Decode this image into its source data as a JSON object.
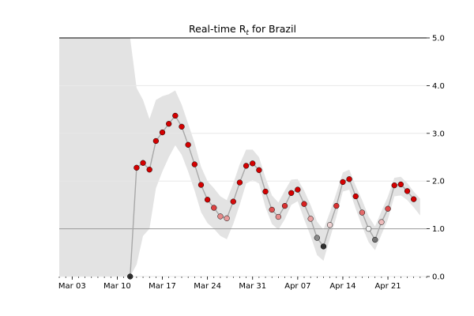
{
  "chart_data": {
    "type": "line",
    "title_prefix": "Real-time R",
    "title_sub": "t",
    "title_suffix": " for Brazil",
    "xlabel": "",
    "ylabel": "",
    "ylim": [
      0,
      5
    ],
    "xlim": [
      "2020-03-01",
      "2020-04-27"
    ],
    "x_ticks": [
      "Mar 03",
      "Mar 10",
      "Mar 17",
      "Mar 24",
      "Mar 31",
      "Apr 07",
      "Apr 14",
      "Apr 21"
    ],
    "x_tick_dates": [
      "2020-03-03",
      "2020-03-10",
      "2020-03-17",
      "2020-03-24",
      "2020-03-31",
      "2020-04-07",
      "2020-04-14",
      "2020-04-21"
    ],
    "y_ticks": [
      "0.0",
      "1.0",
      "2.0",
      "3.0",
      "4.0",
      "5.0"
    ],
    "y_tick_values": [
      0,
      1,
      2,
      3,
      4,
      5
    ],
    "reference_line": 1.0,
    "grid": "horizontal",
    "colors": {
      "band": "#e3e3e3",
      "line": "#a8a8a8",
      "high": "#d40000",
      "low": "#303030",
      "neutral": "#f4f4f4",
      "reference": "#9a9a9a",
      "grid": "#e8e8e8"
    },
    "series": [
      {
        "x": [
          "2020-03-12",
          "2020-03-13",
          "2020-03-14",
          "2020-03-15",
          "2020-03-16",
          "2020-03-17",
          "2020-03-18",
          "2020-03-19",
          "2020-03-20",
          "2020-03-21",
          "2020-03-22",
          "2020-03-23",
          "2020-03-24",
          "2020-03-25",
          "2020-03-26",
          "2020-03-27",
          "2020-03-28",
          "2020-03-29",
          "2020-03-30",
          "2020-03-31",
          "2020-04-01",
          "2020-04-02",
          "2020-04-03",
          "2020-04-04",
          "2020-04-05",
          "2020-04-06",
          "2020-04-07",
          "2020-04-08",
          "2020-04-09",
          "2020-04-10",
          "2020-04-11",
          "2020-04-12",
          "2020-04-13",
          "2020-04-14",
          "2020-04-15",
          "2020-04-16",
          "2020-04-17",
          "2020-04-18",
          "2020-04-19",
          "2020-04-20",
          "2020-04-21",
          "2020-04-22",
          "2020-04-23",
          "2020-04-24",
          "2020-04-25",
          "2020-04-26"
        ],
        "y": [
          0.0,
          2.28,
          2.38,
          2.24,
          2.84,
          3.02,
          3.2,
          3.37,
          3.14,
          2.76,
          2.35,
          1.92,
          1.61,
          1.44,
          1.26,
          1.22,
          1.57,
          1.97,
          2.32,
          2.37,
          2.23,
          1.78,
          1.4,
          1.25,
          1.48,
          1.75,
          1.82,
          1.52,
          1.21,
          0.81,
          0.63,
          1.08,
          1.48,
          1.98,
          2.04,
          1.68,
          1.34,
          1.0,
          0.77,
          1.14,
          1.42,
          1.91,
          1.93,
          1.79,
          1.62,
          null
        ],
        "lower": [
          0.0,
          0.25,
          0.85,
          1.0,
          1.85,
          2.2,
          2.5,
          2.75,
          2.55,
          2.2,
          1.8,
          1.35,
          1.12,
          1.0,
          0.85,
          0.78,
          1.1,
          1.5,
          1.95,
          2.02,
          1.95,
          1.45,
          1.1,
          0.98,
          1.2,
          1.5,
          1.58,
          1.2,
          0.85,
          0.45,
          0.33,
          0.8,
          1.25,
          1.78,
          1.82,
          1.42,
          1.05,
          0.72,
          0.55,
          0.88,
          1.2,
          1.68,
          1.7,
          1.6,
          1.45,
          1.28
        ],
        "upper": [
          5.0,
          3.95,
          3.7,
          3.3,
          3.7,
          3.78,
          3.82,
          3.9,
          3.6,
          3.2,
          2.8,
          2.3,
          2.0,
          1.85,
          1.68,
          1.6,
          1.95,
          2.35,
          2.66,
          2.66,
          2.5,
          2.07,
          1.7,
          1.55,
          1.8,
          2.03,
          2.04,
          1.8,
          1.5,
          1.15,
          0.98,
          1.35,
          1.75,
          2.18,
          2.24,
          1.9,
          1.6,
          1.26,
          1.05,
          1.37,
          1.68,
          2.07,
          2.09,
          1.96,
          1.78,
          1.63
        ]
      }
    ]
  }
}
